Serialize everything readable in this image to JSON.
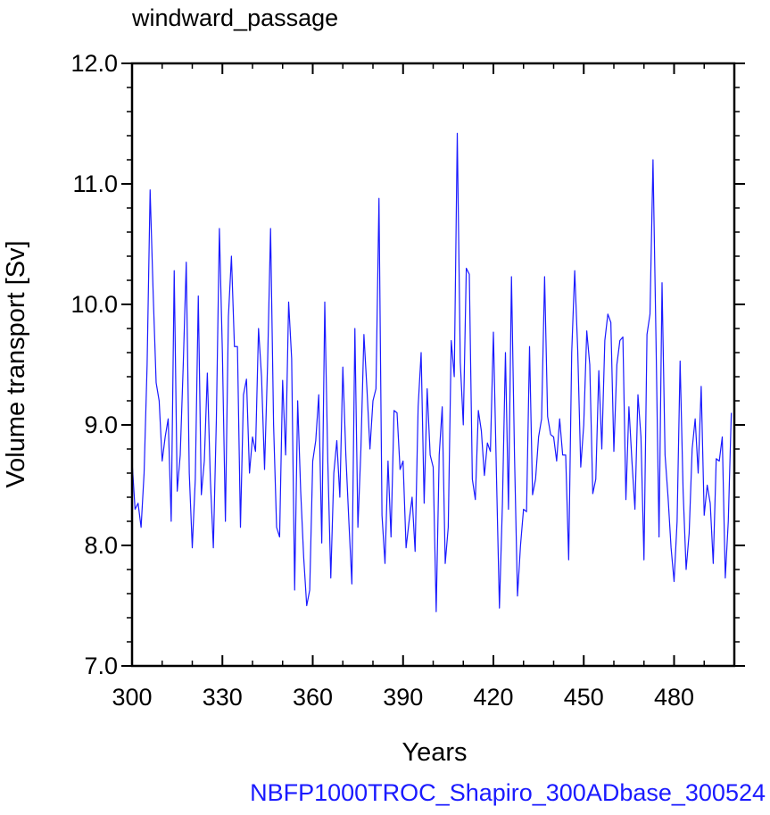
{
  "chart_data": {
    "type": "line",
    "title": "windward_passage",
    "xlabel": "Years",
    "ylabel": "Volume transport [Sv]",
    "footer": "NBFP1000TROC_Shapiro_300ADbase_300524",
    "xlim": [
      300,
      500
    ],
    "ylim": [
      7.0,
      12.0
    ],
    "x_major_ticks": [
      300,
      330,
      360,
      390,
      420,
      450,
      480
    ],
    "x_tick_labels": [
      "300",
      "330",
      "360",
      "390",
      "420",
      "450",
      "480"
    ],
    "y_major_ticks": [
      7.0,
      8.0,
      9.0,
      10.0,
      11.0,
      12.0
    ],
    "y_tick_labels": [
      "7.0",
      "8.0",
      "9.0",
      "10.0",
      "11.0",
      "12.0"
    ],
    "grid": false,
    "series_color": "#1a1aff",
    "footer_color": "#1a1aff",
    "series": [
      {
        "x_start": 300,
        "x_step": 1,
        "values": [
          8.7,
          8.3,
          8.35,
          8.15,
          8.6,
          9.5,
          10.95,
          10.1,
          9.35,
          9.2,
          8.7,
          8.9,
          9.05,
          8.2,
          10.28,
          8.45,
          8.75,
          9.5,
          10.35,
          8.6,
          7.98,
          8.55,
          10.07,
          8.42,
          8.7,
          9.43,
          8.55,
          7.98,
          9.05,
          10.63,
          9.6,
          8.2,
          9.9,
          10.4,
          9.65,
          9.65,
          8.15,
          9.25,
          9.38,
          8.6,
          8.9,
          8.78,
          9.8,
          9.4,
          8.63,
          9.5,
          10.63,
          9.0,
          8.15,
          8.07,
          9.37,
          8.75,
          10.02,
          9.55,
          7.63,
          9.2,
          8.45,
          7.9,
          7.5,
          7.63,
          8.7,
          8.87,
          9.25,
          8.02,
          10.02,
          8.7,
          7.73,
          8.6,
          8.87,
          8.4,
          9.48,
          8.75,
          8.2,
          7.68,
          9.8,
          8.15,
          8.8,
          9.75,
          9.3,
          8.8,
          9.2,
          9.3,
          10.88,
          8.25,
          7.85,
          8.7,
          8.07,
          9.12,
          9.1,
          8.63,
          8.7,
          7.98,
          8.2,
          8.4,
          7.95,
          9.15,
          9.6,
          8.35,
          9.3,
          8.75,
          8.65,
          7.45,
          8.75,
          9.15,
          7.85,
          8.15,
          9.7,
          9.4,
          11.42,
          9.52,
          9.0,
          10.3,
          10.25,
          8.55,
          8.38,
          9.12,
          8.95,
          8.58,
          8.85,
          8.78,
          9.77,
          8.6,
          7.48,
          8.35,
          9.6,
          8.3,
          10.23,
          8.75,
          7.58,
          8.0,
          8.3,
          8.28,
          9.65,
          8.42,
          8.55,
          8.9,
          9.05,
          10.23,
          9.07,
          8.92,
          8.9,
          8.7,
          9.05,
          8.75,
          8.75,
          7.88,
          9.6,
          10.28,
          9.62,
          8.65,
          9.0,
          9.78,
          9.5,
          8.43,
          8.55,
          9.45,
          8.8,
          9.7,
          9.92,
          9.85,
          8.78,
          9.5,
          9.7,
          9.73,
          8.38,
          9.15,
          8.7,
          8.3,
          9.25,
          8.9,
          7.88,
          9.75,
          9.92,
          11.2,
          9.7,
          8.07,
          10.18,
          8.75,
          8.4,
          7.98,
          7.7,
          8.2,
          9.53,
          8.45,
          7.8,
          8.1,
          8.8,
          9.05,
          8.6,
          9.32,
          8.25,
          8.5,
          8.35,
          7.85,
          8.72,
          8.7,
          8.9,
          7.73,
          8.2,
          9.1
        ]
      }
    ]
  }
}
